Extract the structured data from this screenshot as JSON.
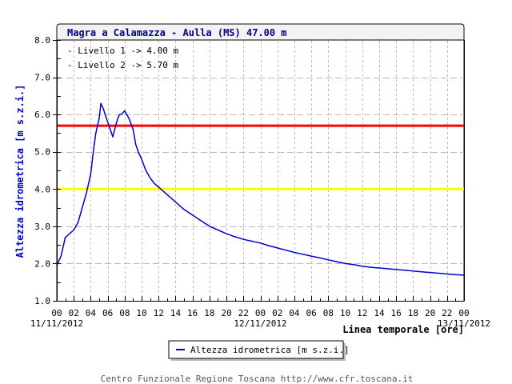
{
  "chart_data": {
    "type": "line",
    "title": "Magra a Calamazza - Aulla (MS) 47.00 m",
    "xlabel": "Linea temporale [ore]",
    "ylabel": "Altezza idrometrica [m s.z.i.]",
    "ylim": [
      1.0,
      8.0
    ],
    "xlim_hours": [
      0,
      48
    ],
    "grid": true,
    "legend_position": "bottom",
    "y_ticks": [
      "1.0",
      "2.0",
      "3.0",
      "4.0",
      "5.0",
      "6.0",
      "7.0",
      "8.0"
    ],
    "x_ticks": [
      "00",
      "02",
      "04",
      "06",
      "08",
      "10",
      "12",
      "14",
      "16",
      "18",
      "20",
      "22",
      "00",
      "02",
      "04",
      "06",
      "08",
      "10",
      "12",
      "14",
      "16",
      "18",
      "20",
      "22",
      "00"
    ],
    "date_labels": [
      {
        "hour": 0,
        "label": "11/11/2012"
      },
      {
        "hour": 24,
        "label": "12/11/2012"
      },
      {
        "hour": 48,
        "label": "13/11/2012"
      }
    ],
    "thresholds": [
      {
        "name": "Livello 1",
        "value": 4.0,
        "label": "- Livello 1 -> 4.00 m",
        "color": "#ffff00"
      },
      {
        "name": "Livello 2",
        "value": 5.7,
        "label": "- Livello 2 -> 5.70 m",
        "color": "#ff0000"
      }
    ],
    "series": [
      {
        "name": "Altezza idrometrica [m s.z.i.]",
        "color": "#0000cc",
        "x_hours": [
          0,
          0.5,
          1.0,
          1.5,
          2.0,
          2.5,
          3.0,
          3.5,
          4.0,
          4.3,
          4.6,
          5.0,
          5.2,
          5.5,
          5.7,
          6.0,
          6.3,
          6.6,
          7.0,
          7.2,
          7.4,
          7.6,
          8.0,
          8.5,
          9.0,
          9.3,
          9.6,
          10.0,
          10.5,
          11.0,
          11.5,
          12.0,
          12.5,
          13.0,
          14.0,
          15.0,
          16.0,
          17.0,
          18.0,
          19.0,
          20.0,
          21.0,
          22.0,
          23.0,
          24.0,
          25.0,
          26.0,
          27.0,
          28.0,
          29.0,
          30.0,
          31.0,
          32.0,
          33.0,
          34.0,
          35.0,
          36.0,
          37.0,
          38.0,
          39.0,
          40.0,
          41.0,
          42.0,
          43.0,
          44.0,
          45.0,
          46.0,
          47.0,
          48.0
        ],
        "values": [
          1.95,
          2.2,
          2.7,
          2.8,
          2.9,
          3.1,
          3.5,
          3.9,
          4.4,
          5.0,
          5.5,
          5.9,
          6.3,
          6.15,
          6.0,
          5.8,
          5.6,
          5.4,
          5.75,
          5.9,
          6.0,
          6.0,
          6.1,
          5.9,
          5.6,
          5.2,
          5.0,
          4.8,
          4.5,
          4.3,
          4.15,
          4.05,
          3.95,
          3.85,
          3.65,
          3.45,
          3.3,
          3.15,
          3.0,
          2.9,
          2.8,
          2.72,
          2.65,
          2.6,
          2.55,
          2.48,
          2.42,
          2.36,
          2.3,
          2.25,
          2.2,
          2.15,
          2.1,
          2.05,
          2.0,
          1.97,
          1.93,
          1.9,
          1.88,
          1.86,
          1.84,
          1.82,
          1.8,
          1.78,
          1.76,
          1.74,
          1.72,
          1.7,
          1.69
        ]
      }
    ]
  },
  "header": {
    "title": "Magra a Calamazza - Aulla (MS) 47.00 m"
  },
  "levels": {
    "level1": "- Livello 1 -> 4.00 m",
    "level2": "- Livello 2 -> 5.70 m"
  },
  "axes": {
    "ylabel": "Altezza idrometrica [m s.z.i.]",
    "xlabel": "Linea temporale [ore]"
  },
  "legend": {
    "label": "Altezza idrometrica [m s.z.i.]"
  },
  "footer": {
    "text": "Centro Funzionale Regione Toscana http://www.cfr.toscana.it"
  },
  "colors": {
    "series": "#0000cc",
    "level1": "#ffff00",
    "level2": "#ff0000",
    "grid": "#bbbbbb",
    "title_band": "#f2f2f2"
  }
}
